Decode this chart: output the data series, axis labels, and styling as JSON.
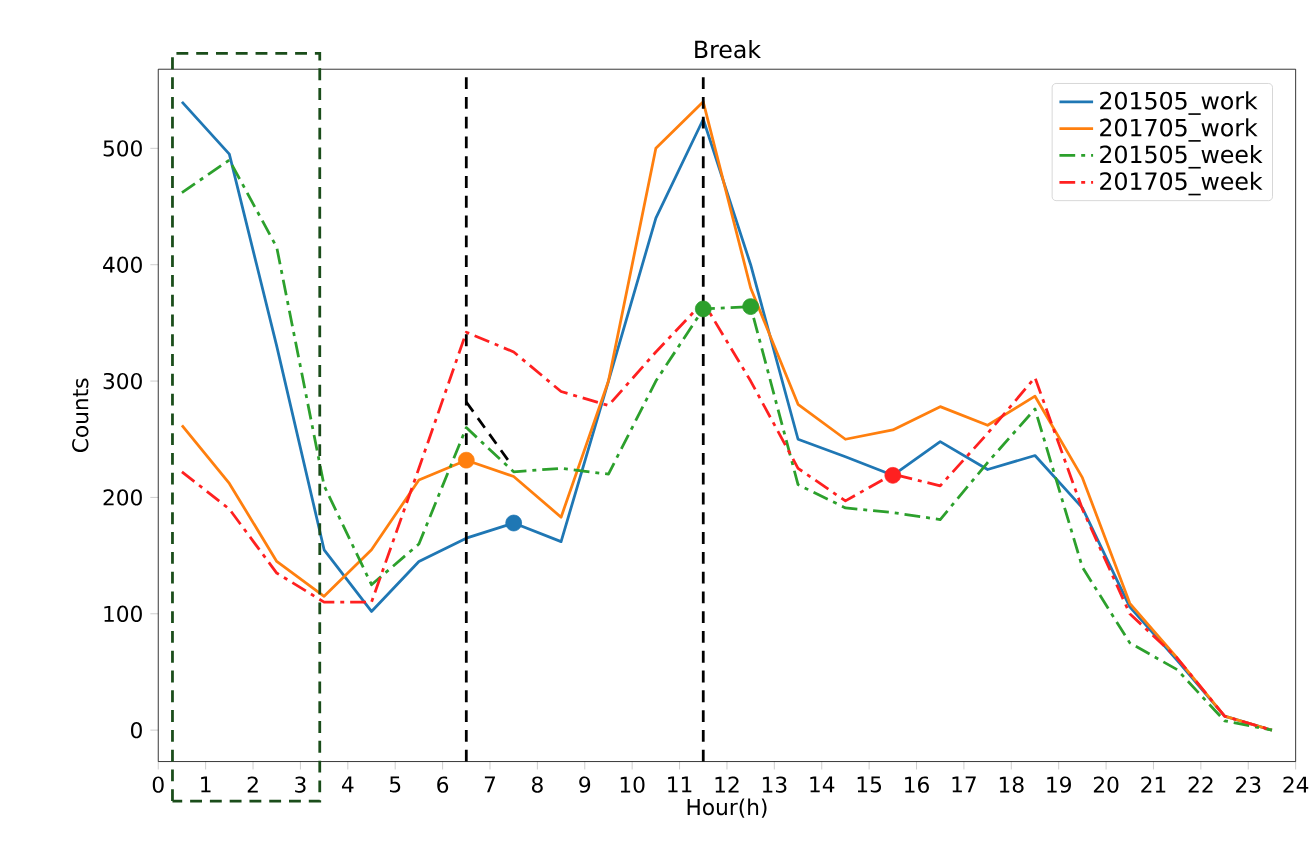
{
  "chart_data": {
    "type": "line",
    "title": "Break",
    "xlabel": "Hour(h)",
    "ylabel": "Counts",
    "x": [
      0.5,
      1.5,
      2.5,
      3.5,
      4.5,
      5.5,
      6.5,
      7.5,
      8.5,
      9.5,
      10.5,
      11.5,
      12.5,
      13.5,
      14.5,
      15.5,
      16.5,
      17.5,
      18.5,
      19.5,
      20.5,
      21.5,
      22.5,
      23.5
    ],
    "series": [
      {
        "name": "201505_work",
        "color": "#1f77b4",
        "line_style": "solid",
        "values": [
          540,
          495,
          330,
          155,
          102,
          145,
          165,
          178,
          162,
          300,
          440,
          525,
          400,
          250,
          235,
          219,
          248,
          224,
          236,
          191,
          106,
          60,
          12,
          0
        ]
      },
      {
        "name": "201705_work",
        "color": "#ff7f0e",
        "line_style": "solid",
        "values": [
          262,
          212,
          145,
          115,
          155,
          215,
          232,
          218,
          183,
          300,
          500,
          540,
          380,
          280,
          250,
          258,
          278,
          262,
          287,
          217,
          109,
          62,
          12,
          0
        ]
      },
      {
        "name": "201505_week",
        "color": "#2ca02c",
        "line_style": "dashdot",
        "values": [
          462,
          490,
          415,
          210,
          125,
          160,
          260,
          222,
          225,
          220,
          300,
          362,
          364,
          211,
          191,
          187,
          181,
          230,
          276,
          140,
          75,
          52,
          8,
          0
        ]
      },
      {
        "name": "201705_week",
        "color": "#ff2020",
        "line_style": "dashdot",
        "values": [
          222,
          190,
          135,
          110,
          110,
          225,
          342,
          325,
          291,
          279,
          325,
          368,
          300,
          225,
          197,
          220,
          210,
          255,
          303,
          190,
          100,
          62,
          12,
          0
        ]
      },
      {
        "type": "line",
        "color": "#000000",
        "line_style": "dashed",
        "x": [
          6.5,
          7.4
        ],
        "values": [
          282,
          231
        ]
      },
      {
        "type": "scatter",
        "color": "#1f77b4",
        "marker": "circle",
        "x": [
          7.5
        ],
        "values": [
          178
        ]
      },
      {
        "type": "scatter",
        "color": "#ff7f0e",
        "marker": "circle",
        "x": [
          6.5
        ],
        "values": [
          232
        ]
      },
      {
        "type": "scatter",
        "color": "#2ca02c",
        "marker": "circle",
        "x": [
          11.5,
          12.5
        ],
        "values": [
          362,
          364
        ]
      },
      {
        "type": "scatter",
        "color": "#ff2020",
        "marker": "circle",
        "x": [
          15.5
        ],
        "values": [
          219
        ]
      }
    ],
    "ref_lines": [
      {
        "axis": "x",
        "value": 6.5,
        "color": "#000000",
        "line_style": "dashed"
      },
      {
        "axis": "x",
        "value": 11.5,
        "color": "#000000",
        "line_style": "dashed"
      }
    ],
    "xlim": [
      0,
      24
    ],
    "ylim": [
      -27,
      568
    ],
    "xticks": [
      0,
      1,
      2,
      3,
      4,
      5,
      6,
      7,
      8,
      9,
      10,
      11,
      12,
      13,
      14,
      15,
      16,
      17,
      18,
      19,
      20,
      21,
      22,
      23,
      24
    ],
    "yticks": [
      0,
      100,
      200,
      300,
      400,
      500
    ],
    "grid": false,
    "legend": "top right"
  }
}
